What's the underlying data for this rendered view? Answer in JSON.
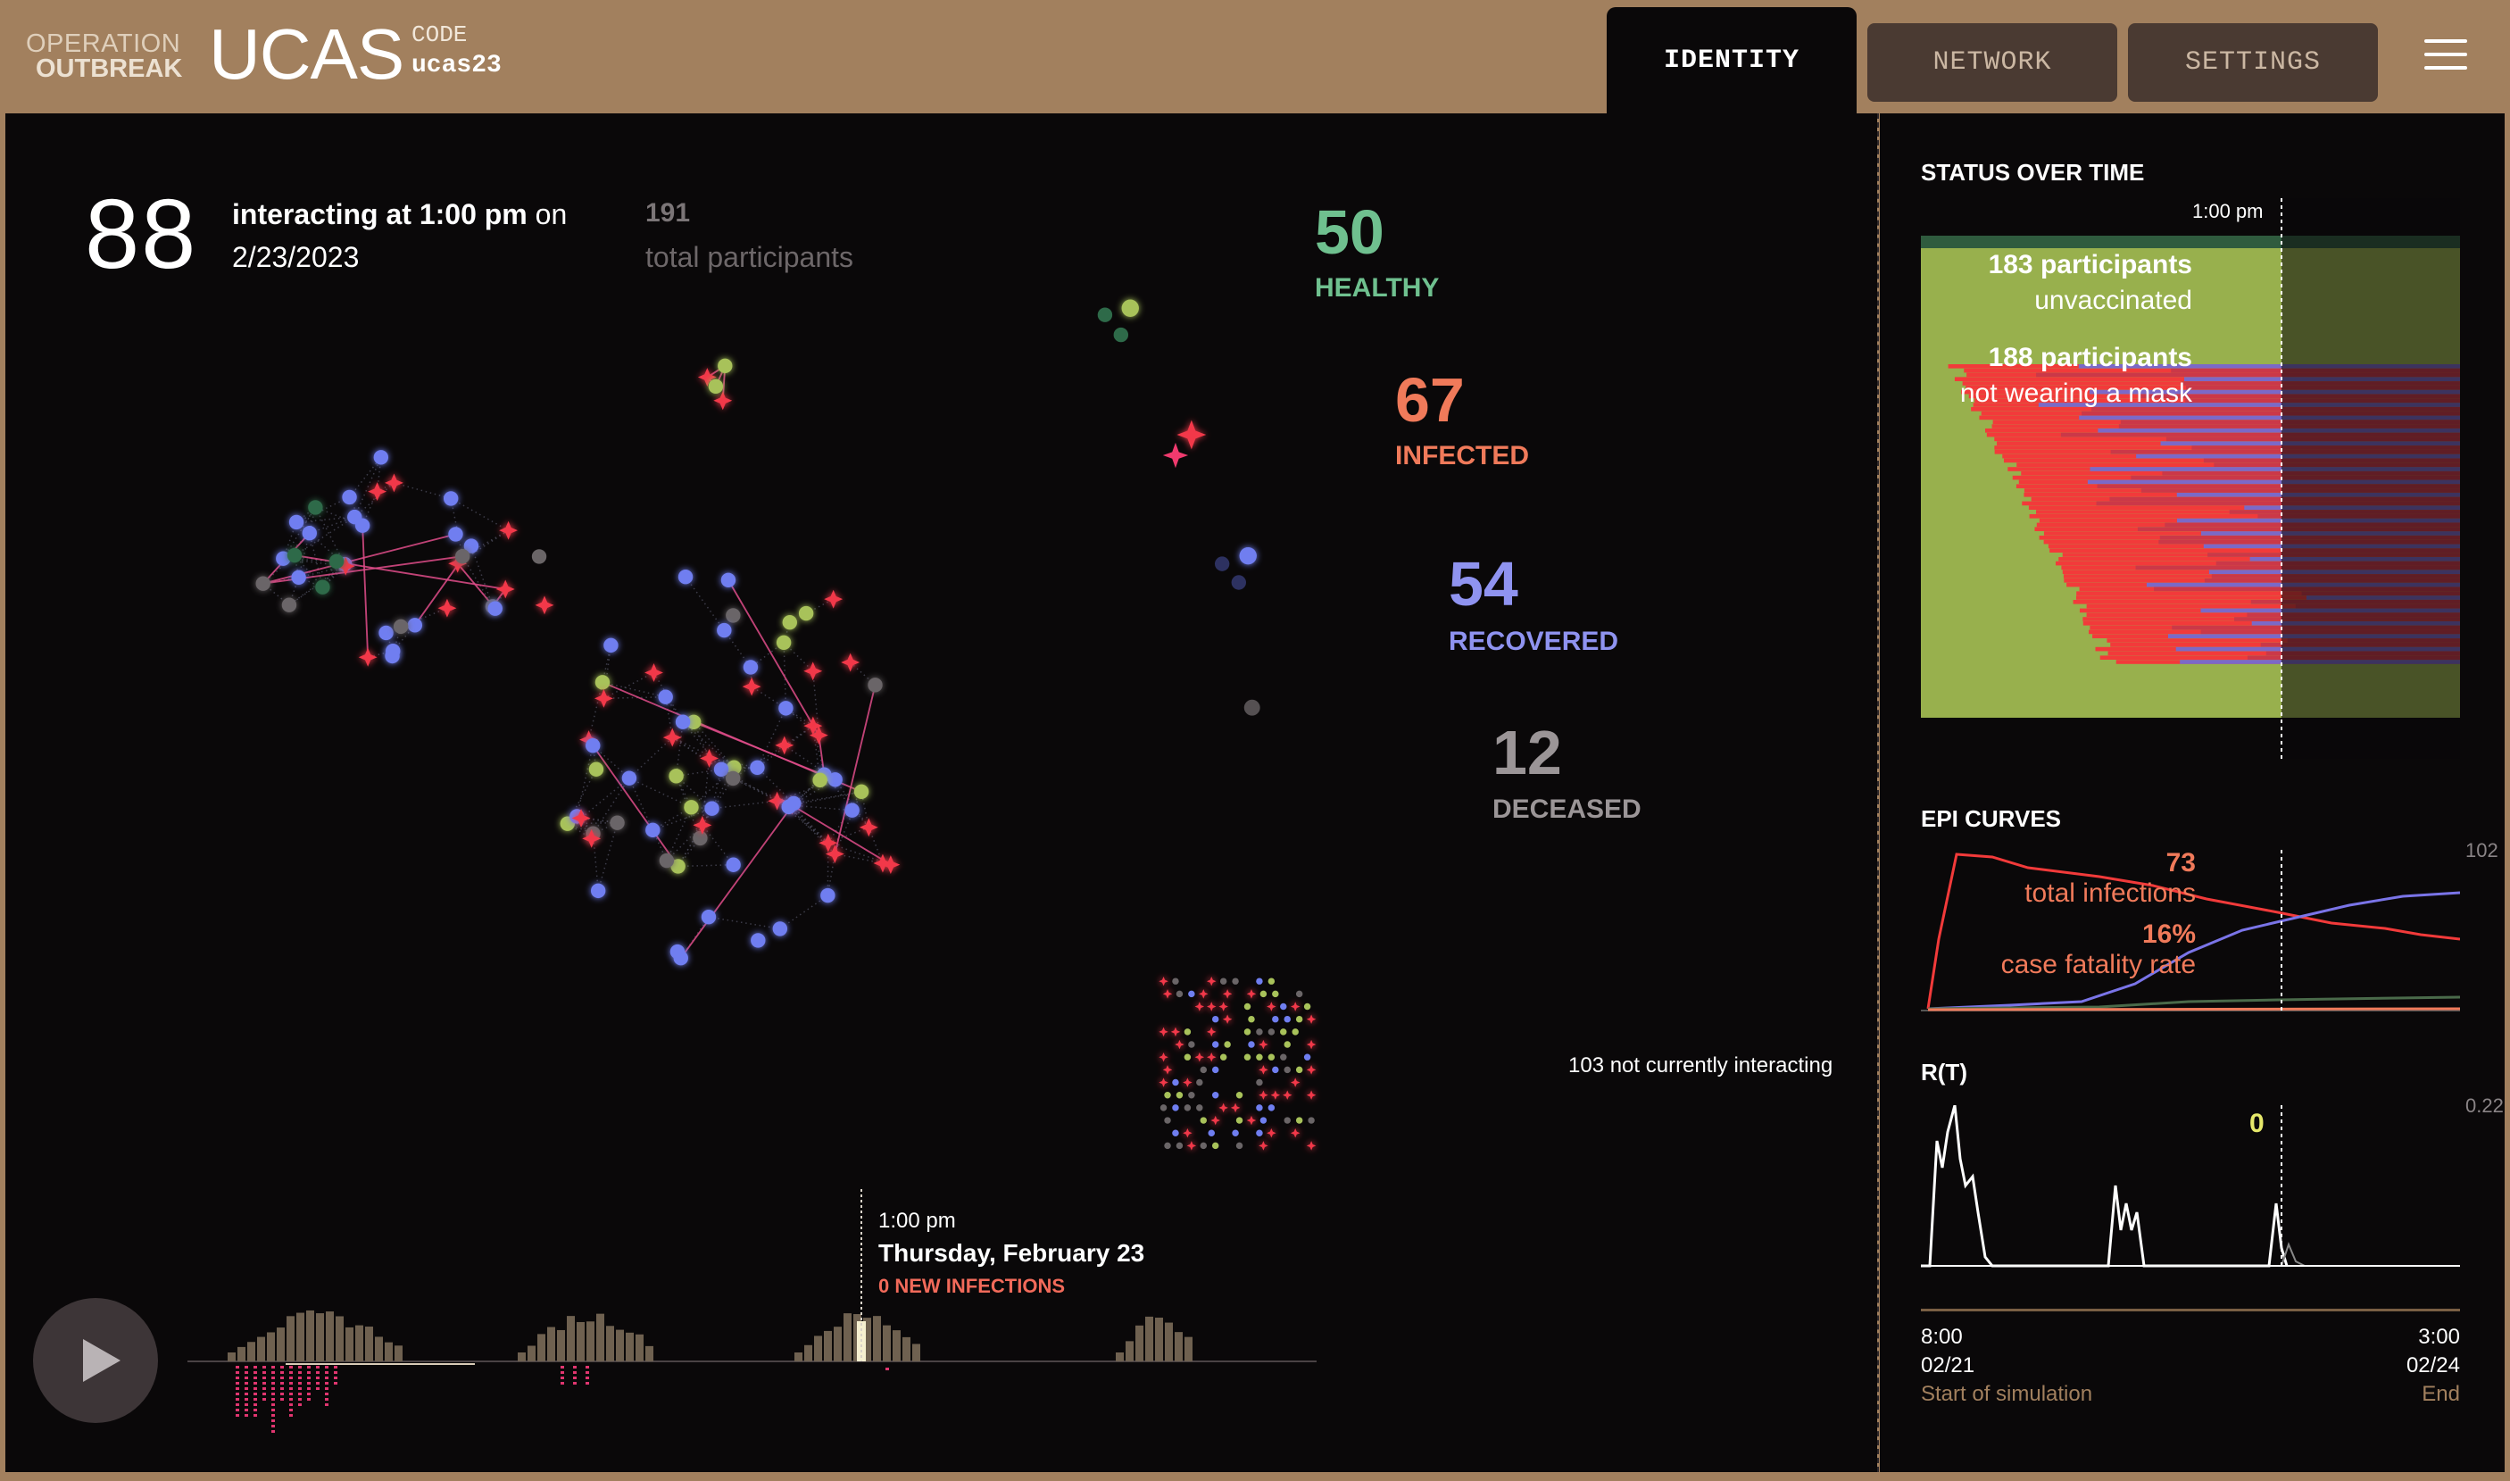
{
  "header": {
    "brand_line1": "OPERATION",
    "brand_line2": "OUTBREAK",
    "app_name": "UCAS",
    "code_label": "CODE",
    "code_value": "ucas23",
    "tabs": [
      {
        "label": "IDENTITY",
        "active": true
      },
      {
        "label": "NETWORK",
        "active": false
      },
      {
        "label": "SETTINGS",
        "active": false
      }
    ],
    "menu_icon": "hamburger-menu-icon"
  },
  "summary": {
    "interacting_count": "88",
    "interacting_label": "interacting at 1:00 pm",
    "interacting_on": "on",
    "date": "2/23/2023",
    "total_count": "191",
    "total_label": "total participants",
    "not_interacting": "103 not currently interacting"
  },
  "status_counts": [
    {
      "key": "healthy",
      "value": "50",
      "label": "HEALTHY",
      "color": "#6fc08f"
    },
    {
      "key": "infected",
      "value": "67",
      "label": "INFECTED",
      "color": "#f07a5a"
    },
    {
      "key": "recovered",
      "value": "54",
      "label": "RECOVERED",
      "color": "#8f93f0"
    },
    {
      "key": "deceased",
      "value": "12",
      "label": "DECEASED",
      "color": "#9b9597"
    }
  ],
  "timeline": {
    "time": "1:00 pm",
    "date_label": "Thursday, February 23",
    "new_infections": "0 NEW INFECTIONS"
  },
  "side": {
    "status_title": "STATUS OVER TIME",
    "status_time": "1:00 pm",
    "unvacc_count": "183 participants",
    "unvacc_label": "unvaccinated",
    "nomask_count": "188 participants",
    "nomask_label": "not wearing a mask",
    "epi_title": "EPI CURVES",
    "epi_max": "102",
    "epi_total_value": "73",
    "epi_total_label": "total infections",
    "epi_cfr_value": "16%",
    "epi_cfr_label": "case fatality rate",
    "rt_title": "R(T)",
    "rt_max": "0.22",
    "rt_value": "0",
    "start_time": "8:00",
    "start_date": "02/21",
    "start_label": "Start of simulation",
    "end_time": "3:00",
    "end_date": "02/24",
    "end_label": "End"
  },
  "colors": {
    "healthy": "#a8c25a",
    "infected": "#f2394a",
    "recovered": "#6f7ef0",
    "deceased": "#6a6567",
    "accent_bg": "#a2805e"
  }
}
